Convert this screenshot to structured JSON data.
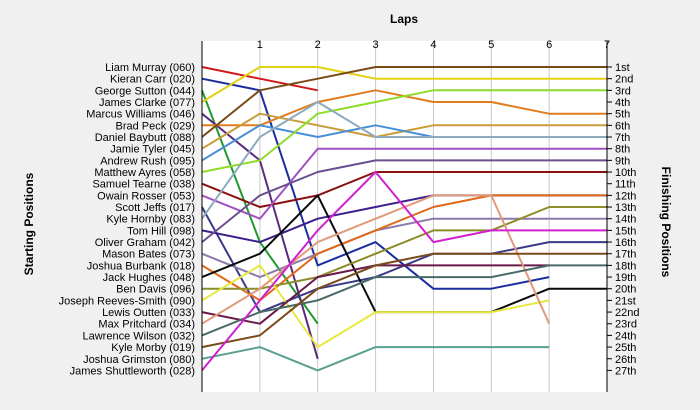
{
  "chart_data": {
    "type": "line",
    "title": "Laps",
    "xlabel": "Laps",
    "ylabel_left": "Starting Positions",
    "ylabel_right": "Finishing Positions",
    "x": [
      0,
      1,
      2,
      3,
      4,
      5,
      6,
      7
    ],
    "x_ticks": [
      "1",
      "2",
      "3",
      "4",
      "5",
      "6",
      "7"
    ],
    "y_range": [
      1,
      27
    ],
    "grid": "vertical",
    "finishing_labels": [
      "1st",
      "2nd",
      "3rd",
      "4th",
      "5th",
      "6th",
      "7th",
      "8th",
      "9th",
      "10th",
      "11th",
      "12th",
      "13th",
      "14th",
      "15th",
      "16th",
      "17th",
      "18th",
      "19th",
      "20th",
      "21st",
      "22nd",
      "23rd",
      "24th",
      "25th",
      "26th",
      "27th"
    ],
    "series": [
      {
        "name": "Liam Murray (060)",
        "color": "#d01818",
        "positions": [
          1,
          2,
          3
        ]
      },
      {
        "name": "Kieran Carr (020)",
        "color": "#1a2e9e",
        "positions": [
          2,
          3,
          18,
          16,
          20,
          20,
          19
        ]
      },
      {
        "name": "George Sutton (044)",
        "color": "#1d9a2c",
        "positions": [
          3,
          16,
          23
        ]
      },
      {
        "name": "James Clarke (077)",
        "color": "#e3d112",
        "positions": [
          4,
          1,
          1,
          2,
          2,
          2,
          2,
          2
        ]
      },
      {
        "name": "Marcus Williams (046)",
        "color": "#5a2a80",
        "positions": [
          5,
          9,
          26
        ]
      },
      {
        "name": "Brad Peck (029)",
        "color": "#e07d1f",
        "positions": [
          6,
          6,
          4,
          3,
          4,
          4,
          5,
          5
        ]
      },
      {
        "name": "Daniel Baybutt (088)",
        "color": "#7a4a16",
        "positions": [
          7,
          3,
          2,
          1,
          1,
          1,
          1,
          1
        ]
      },
      {
        "name": "Jamie Tyler (045)",
        "color": "#c89c3a",
        "positions": [
          8,
          5,
          6,
          7,
          6,
          6,
          6,
          6
        ]
      },
      {
        "name": "Andrew Rush (095)",
        "color": "#4a8ed8",
        "positions": [
          9,
          6,
          7,
          6,
          7,
          7,
          7,
          7
        ]
      },
      {
        "name": "Matthew Ayres (058)",
        "color": "#8edc2a",
        "positions": [
          10,
          9,
          5,
          4,
          3,
          3,
          3,
          3
        ]
      },
      {
        "name": "Samuel Tearne (038)",
        "color": "#8a1010",
        "positions": [
          11,
          13,
          12,
          10,
          10,
          10,
          10,
          10
        ]
      },
      {
        "name": "Owain Rosser (053)",
        "color": "#a050c0",
        "positions": [
          12,
          14,
          8,
          8,
          8,
          8,
          8,
          8
        ]
      },
      {
        "name": "Scott Jeffs (017)",
        "color": "#3a3a88",
        "positions": [
          13,
          22,
          20,
          19,
          17,
          17,
          16,
          16
        ]
      },
      {
        "name": "Kyle Hornby (083)",
        "color": "#8caac0",
        "positions": [
          14,
          7,
          4,
          7,
          7,
          7,
          7,
          7
        ]
      },
      {
        "name": "Tom Hill (098)",
        "color": "#3e1e8c",
        "positions": [
          15,
          16,
          14,
          13,
          12,
          12,
          12,
          12
        ]
      },
      {
        "name": "Oliver Graham (042)",
        "color": "#6a4e8e",
        "positions": [
          16,
          12,
          10,
          9,
          9,
          9,
          9,
          9
        ]
      },
      {
        "name": "Mason Bates (073)",
        "color": "#8e7aa8",
        "positions": [
          17,
          19,
          17,
          15,
          14,
          14,
          14,
          14
        ]
      },
      {
        "name": "Joshua Burbank (018)",
        "color": "#e06a1a",
        "positions": [
          18,
          21,
          17,
          15,
          13,
          12,
          12,
          12
        ]
      },
      {
        "name": "Jack Hughes (048)",
        "color": "#0a0a0a",
        "positions": [
          19,
          17,
          12,
          22,
          22,
          22,
          20,
          20
        ]
      },
      {
        "name": "Ben Davis (096)",
        "color": "#8c8c2a",
        "positions": [
          20,
          20,
          19,
          17,
          15,
          15,
          13,
          13
        ]
      },
      {
        "name": "Joseph Reeves-Smith (090)",
        "color": "#e8e840",
        "positions": [
          21,
          18,
          25,
          22,
          22,
          22,
          21
        ]
      },
      {
        "name": "Lewis Outten (033)",
        "color": "#6a1a4a",
        "positions": [
          22,
          23,
          19,
          18,
          18,
          18,
          18
        ]
      },
      {
        "name": "Max Pritchard (034)",
        "color": "#e09a7a",
        "positions": [
          23,
          20,
          16,
          14,
          12,
          12,
          23
        ]
      },
      {
        "name": "Lawrence Wilson (032)",
        "color": "#4a6a6a",
        "positions": [
          24,
          22,
          21,
          19,
          19,
          19,
          18,
          18
        ]
      },
      {
        "name": "Kyle Morby (019)",
        "color": "#7a4a1a",
        "positions": [
          25,
          24,
          20,
          18,
          17,
          17,
          17,
          17
        ]
      },
      {
        "name": "Joshua Grimston (080)",
        "color": "#5aa090",
        "positions": [
          26,
          25,
          27,
          25,
          25,
          25,
          25
        ]
      },
      {
        "name": "James Shuttleworth (028)",
        "color": "#d020d0",
        "positions": [
          27,
          21,
          15,
          10,
          16,
          15,
          15,
          15
        ]
      }
    ]
  }
}
